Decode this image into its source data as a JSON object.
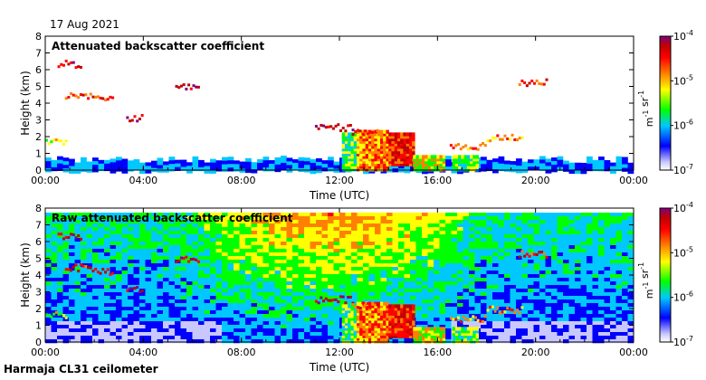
{
  "header": {
    "date": "17 Aug 2021"
  },
  "footer": {
    "station": "Harmaja CL31 ceilometer"
  },
  "colors": {
    "colormap": [
      "#ffffff",
      "#c8c8ff",
      "#0000ff",
      "#00c8ff",
      "#00ff00",
      "#ffff00",
      "#ff8000",
      "#ff0000",
      "#c00000",
      "#800080"
    ]
  },
  "chart_data": [
    {
      "type": "heatmap",
      "title": "Attenuated backscatter coefficient",
      "xlabel": "Time (UTC)",
      "ylabel": "Height (km)",
      "x_ticks": [
        "00:00",
        "04:00",
        "08:00",
        "12:00",
        "16:00",
        "20:00",
        "00:00"
      ],
      "x_range_hours": [
        0,
        24
      ],
      "y_ticks": [
        "0",
        "1",
        "2",
        "3",
        "4",
        "5",
        "6",
        "7",
        "8"
      ],
      "ylim": [
        0,
        8
      ],
      "colorbar": {
        "ticks": [
          "10-4",
          "10-5",
          "10-6",
          "10-7"
        ],
        "tick_exponents": [
          -4,
          -5,
          -6,
          -7
        ],
        "label": "m-1 sr-1"
      }
    },
    {
      "type": "heatmap",
      "title": "Raw attenuated backscatter coefficient",
      "xlabel": "Time (UTC)",
      "ylabel": "Height (km)",
      "x_ticks": [
        "00:00",
        "04:00",
        "08:00",
        "12:00",
        "16:00",
        "20:00",
        "00:00"
      ],
      "x_range_hours": [
        0,
        24
      ],
      "y_ticks": [
        "0",
        "1",
        "2",
        "3",
        "4",
        "5",
        "6",
        "7",
        "8"
      ],
      "ylim": [
        0,
        8
      ],
      "colorbar": {
        "ticks": [
          "10-4",
          "10-5",
          "10-6",
          "10-7"
        ],
        "tick_exponents": [
          -4,
          -5,
          -6,
          -7
        ],
        "label": "m-1 sr-1"
      }
    }
  ]
}
